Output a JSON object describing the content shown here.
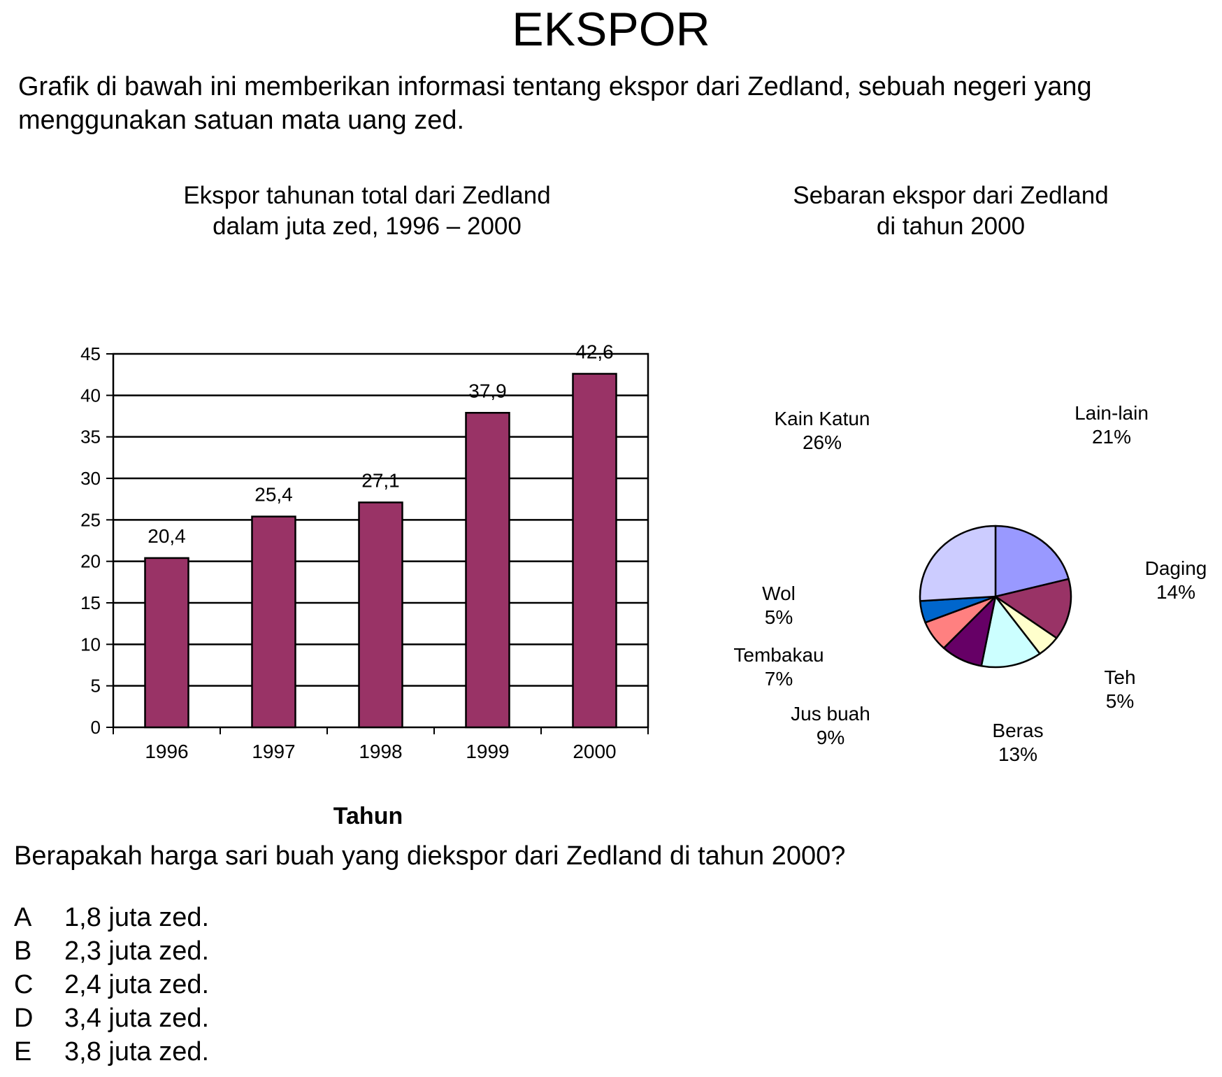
{
  "title": "EKSPOR",
  "intro": "Grafik di bawah ini memberikan informasi tentang ekspor dari Zedland, sebuah negeri yang menggunakan satuan mata uang zed.",
  "bar_chart_title": [
    "Ekspor tahunan total dari Zedland",
    "dalam juta zed, 1996 – 2000"
  ],
  "pie_chart_title": [
    "Sebaran ekspor dari Zedland",
    "di tahun 2000"
  ],
  "question": "Berapakah harga sari buah yang diekspor dari Zedland di tahun 2000?",
  "options": [
    {
      "letter": "A",
      "text": "1,8 juta zed."
    },
    {
      "letter": "B",
      "text": "2,3 juta zed."
    },
    {
      "letter": "C",
      "text": "2,4 juta zed."
    },
    {
      "letter": "D",
      "text": "3,4 juta zed."
    },
    {
      "letter": "E",
      "text": "3,8 juta zed."
    }
  ],
  "chart_data": [
    {
      "type": "bar",
      "title": "Ekspor tahunan total dari Zedland dalam juta zed, 1996 – 2000",
      "xlabel": "Tahun",
      "ylabel": "",
      "categories": [
        "1996",
        "1997",
        "1998",
        "1999",
        "2000"
      ],
      "values": [
        20.4,
        25.4,
        27.1,
        37.9,
        42.6
      ],
      "value_labels": [
        "20,4",
        "25,4",
        "27,1",
        "37,9",
        "42,6"
      ],
      "ylim": [
        0,
        45
      ],
      "yticks": [
        0,
        5,
        10,
        15,
        20,
        25,
        30,
        35,
        40,
        45
      ],
      "grid": true,
      "bar_color": "#993366"
    },
    {
      "type": "pie",
      "title": "Sebaran ekspor dari Zedland di tahun 2000",
      "slices": [
        {
          "label": "Lain-lain",
          "percent_label": "21%",
          "value": 21,
          "color": "#9999ff"
        },
        {
          "label": "Daging",
          "percent_label": "14%",
          "value": 14,
          "color": "#993366"
        },
        {
          "label": "Teh",
          "percent_label": "5%",
          "value": 5,
          "color": "#ffffcc"
        },
        {
          "label": "Beras",
          "percent_label": "13%",
          "value": 13,
          "color": "#ccffff"
        },
        {
          "label": "Jus buah",
          "percent_label": "9%",
          "value": 9,
          "color": "#660066"
        },
        {
          "label": "Tembakau",
          "percent_label": "7%",
          "value": 7,
          "color": "#ff8080"
        },
        {
          "label": "Wol",
          "percent_label": "5%",
          "value": 5,
          "color": "#0066cc"
        },
        {
          "label": "Kain Katun",
          "percent_label": "26%",
          "value": 26,
          "color": "#ccccff"
        }
      ]
    }
  ]
}
